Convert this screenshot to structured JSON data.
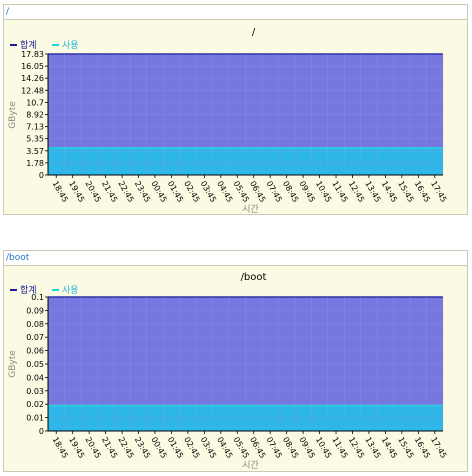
{
  "panels": [
    {
      "header": "/",
      "chart_data": {
        "type": "area",
        "title": "/",
        "xlabel": "시간",
        "ylabel": "GByte",
        "ylim": [
          0,
          17.83
        ],
        "yticks": [
          "0",
          "1.78",
          "3.57",
          "5.35",
          "7.13",
          "8.92",
          "10.7",
          "12.48",
          "14.26",
          "16.05",
          "17.83"
        ],
        "categories": [
          "18:45",
          "19:45",
          "20:45",
          "21:45",
          "22:45",
          "23:45",
          "00:45",
          "01:45",
          "02:45",
          "03:45",
          "04:45",
          "05:45",
          "06:45",
          "07:45",
          "08:45",
          "09:45",
          "10:45",
          "11:45",
          "12:45",
          "13:45",
          "14:45",
          "15:45",
          "16:45",
          "17:45"
        ],
        "series": [
          {
            "name": "합계",
            "value": 17.83,
            "color": "#7777e0",
            "line_color": "#1a1a9a"
          },
          {
            "name": "사용",
            "value": 4.0,
            "color": "#2fb6e8",
            "line_color": "#22d3e0"
          }
        ],
        "legend": "top-left",
        "grid": true
      }
    },
    {
      "header": "/boot",
      "chart_data": {
        "type": "area",
        "title": "/boot",
        "xlabel": "시간",
        "ylabel": "GByte",
        "ylim": [
          0,
          0.1
        ],
        "yticks": [
          "0",
          "0.01",
          "0.02",
          "0.03",
          "0.04",
          "0.05",
          "0.06",
          "0.07",
          "0.08",
          "0.09",
          "0.1"
        ],
        "categories": [
          "18:45",
          "19:45",
          "20:45",
          "21:45",
          "22:45",
          "23:45",
          "00:45",
          "01:45",
          "02:45",
          "03:45",
          "04:45",
          "05:45",
          "06:45",
          "07:45",
          "08:45",
          "09:45",
          "10:45",
          "11:45",
          "12:45",
          "13:45",
          "14:45",
          "15:45",
          "16:45",
          "17:45"
        ],
        "series": [
          {
            "name": "합계",
            "value": 0.1,
            "color": "#7777e0",
            "line_color": "#1a1a9a"
          },
          {
            "name": "사용",
            "value": 0.019,
            "color": "#2fb6e8",
            "line_color": "#22d3e0"
          }
        ],
        "legend": "top-left",
        "grid": true
      }
    }
  ]
}
